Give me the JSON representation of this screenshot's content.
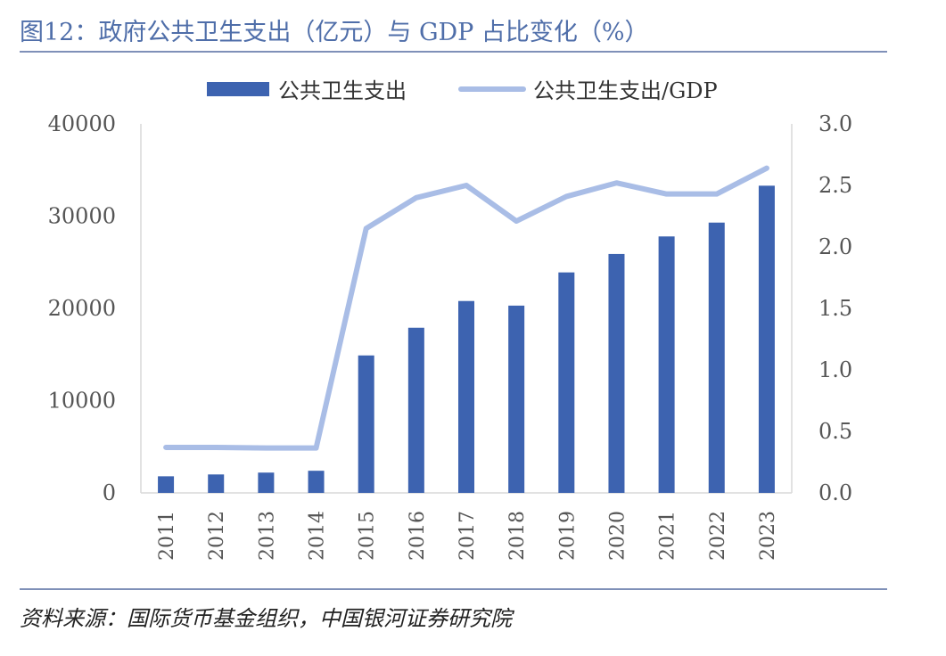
{
  "header": {
    "title": "图12：政府公共卫生支出（亿元）与 GDP 占比变化（%）"
  },
  "footer": {
    "source": "资料来源：国际货币基金组织，中国银河证券研究院"
  },
  "colors": {
    "bar": "#3d63b0",
    "line": "#a9bde6",
    "axis_text": "#555555",
    "title": "#4f6ea9"
  },
  "chart_data": {
    "type": "bar",
    "title": "图12：政府公共卫生支出（亿元）与 GDP 占比变化（%）",
    "categories": [
      "2011",
      "2012",
      "2013",
      "2014",
      "2015",
      "2016",
      "2017",
      "2018",
      "2019",
      "2020",
      "2021",
      "2022",
      "2023"
    ],
    "series": [
      {
        "name": "公共卫生支出",
        "type": "bar",
        "axis": "left",
        "values": [
          1800,
          2000,
          2200,
          2400,
          14900,
          17900,
          20800,
          20300,
          23900,
          25900,
          27800,
          29300,
          33300
        ]
      },
      {
        "name": "公共卫生支出/GDP",
        "type": "line",
        "axis": "right",
        "values": [
          0.37,
          0.37,
          0.365,
          0.365,
          2.15,
          2.4,
          2.5,
          2.21,
          2.41,
          2.52,
          2.43,
          2.43,
          2.64
        ]
      }
    ],
    "y_left": {
      "min": 0,
      "max": 40000,
      "ticks": [
        "0",
        "10000",
        "20000",
        "30000",
        "40000"
      ]
    },
    "y_right": {
      "min": 0,
      "max": 3.0,
      "ticks": [
        "0.0",
        "0.5",
        "1.0",
        "1.5",
        "2.0",
        "2.5",
        "3.0"
      ]
    },
    "legend_position": "top-center",
    "grid": false
  }
}
